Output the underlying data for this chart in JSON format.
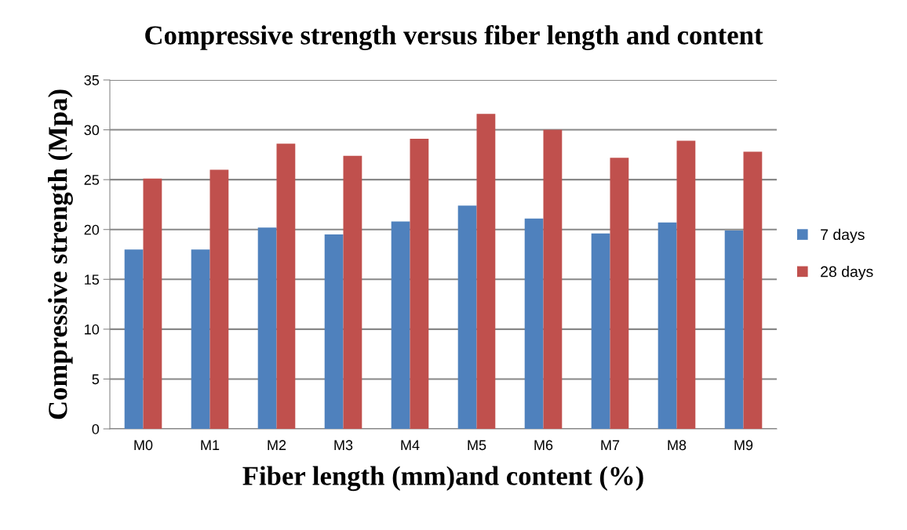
{
  "chart_data": {
    "type": "bar",
    "title": "Compressive strength versus fiber length and content",
    "xlabel": "Fiber length (mm)and content (%)",
    "ylabel": "Compressive strength (Mpa)",
    "categories": [
      "M0",
      "M1",
      "M2",
      "M3",
      "M4",
      "M5",
      "M6",
      "M7",
      "M8",
      "M9"
    ],
    "series": [
      {
        "name": "7 days",
        "color": "#4f81bd",
        "values": [
          18.0,
          18.0,
          20.2,
          19.5,
          20.8,
          22.4,
          21.1,
          19.6,
          20.7,
          19.9
        ]
      },
      {
        "name": "28 days",
        "color": "#c0504d",
        "values": [
          25.1,
          26.0,
          28.6,
          27.4,
          29.1,
          31.6,
          30.0,
          27.2,
          28.9,
          27.8
        ]
      }
    ],
    "ylim": [
      0,
      35
    ],
    "yticks": [
      0,
      5,
      10,
      15,
      20,
      25,
      30,
      35
    ],
    "grid": "y",
    "legend": "right"
  }
}
